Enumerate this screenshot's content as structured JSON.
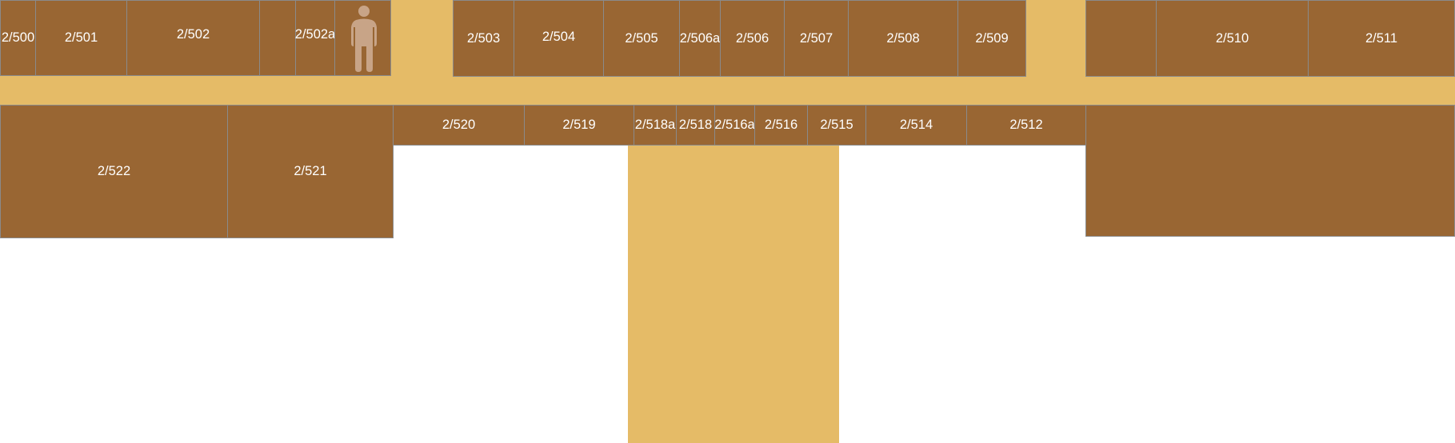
{
  "colors": {
    "room_fill": "#996633",
    "room_border": "#8a8a8a",
    "corridor": "#e5bb67",
    "label": "#ffffff",
    "icon": "#c8a487",
    "background": "#ffffff"
  },
  "rooms": {
    "r500": "2/500",
    "r501": "2/501",
    "r502": "2/502",
    "r502a": "2/502a",
    "r503": "2/503",
    "r504": "2/504",
    "r505": "2/505",
    "r506a": "2/506a",
    "r506": "2/506",
    "r507": "2/507",
    "r508": "2/508",
    "r509": "2/509",
    "r510": "2/510",
    "r511": "2/511",
    "r512": "2/512",
    "r514": "2/514",
    "r515": "2/515",
    "r516": "2/516",
    "r516a": "2/516a",
    "r518": "2/518",
    "r518a": "2/518a",
    "r519": "2/519",
    "r520": "2/520",
    "r521": "2/521",
    "r522": "2/522"
  },
  "icons": {
    "toilet": "person-icon"
  }
}
